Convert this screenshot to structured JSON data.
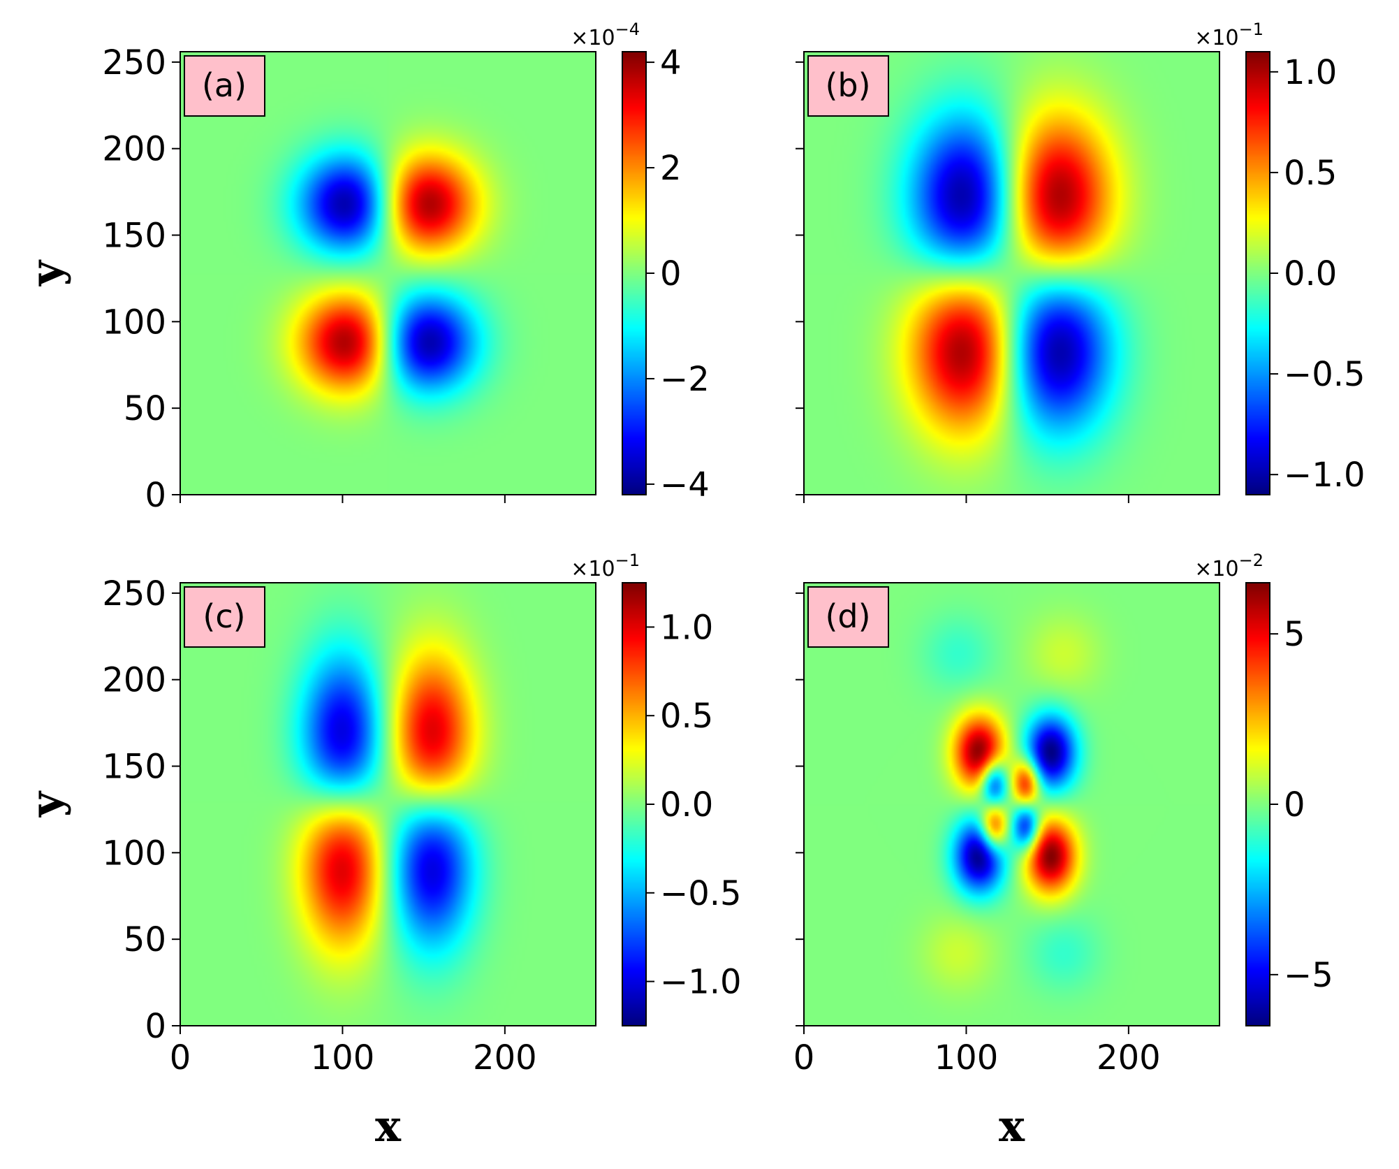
{
  "chart_data": [
    {
      "type": "heatmap",
      "panel_label": "(a)",
      "colormap": "jet",
      "x_ticks": [
        0,
        100,
        200
      ],
      "y_ticks": [
        0,
        50,
        100,
        150,
        200,
        250
      ],
      "xlim": [
        0,
        256
      ],
      "ylim": [
        0,
        256
      ],
      "ylabel": "y",
      "xlabel": "",
      "colorbar": {
        "range": [
          -4.2,
          4.2
        ],
        "ticks": [
          -4,
          -2,
          0,
          2,
          4
        ],
        "tick_labels": [
          "−4",
          "−2",
          "0",
          "2",
          "4"
        ],
        "exponent": "×10",
        "exponent_power": "−4"
      },
      "blobs": [
        {
          "x": 105,
          "y": 168,
          "value": -1.0,
          "sx": 22,
          "sy": 20
        },
        {
          "x": 150,
          "y": 168,
          "value": 1.0,
          "sx": 22,
          "sy": 20
        },
        {
          "x": 105,
          "y": 88,
          "value": 1.0,
          "sx": 22,
          "sy": 20
        },
        {
          "x": 150,
          "y": 88,
          "value": -1.0,
          "sx": 22,
          "sy": 20
        }
      ]
    },
    {
      "type": "heatmap",
      "panel_label": "(b)",
      "colormap": "jet",
      "x_ticks": [
        0,
        100,
        200
      ],
      "y_ticks": [
        0,
        50,
        100,
        150,
        200,
        250
      ],
      "xlim": [
        0,
        256
      ],
      "ylim": [
        0,
        256
      ],
      "ylabel": "",
      "xlabel": "",
      "colorbar": {
        "range": [
          -1.1,
          1.1
        ],
        "ticks": [
          -1.0,
          -0.5,
          0.0,
          0.5,
          1.0
        ],
        "tick_labels": [
          "−1.0",
          "−0.5",
          "0.0",
          "0.5",
          "1.0"
        ],
        "exponent": "×10",
        "exponent_power": "−1"
      },
      "blobs": [
        {
          "x": 100,
          "y": 170,
          "value": -1.0,
          "sx": 24,
          "sy": 34
        },
        {
          "x": 155,
          "y": 170,
          "value": 1.0,
          "sx": 24,
          "sy": 34
        },
        {
          "x": 100,
          "y": 85,
          "value": 1.0,
          "sx": 24,
          "sy": 34
        },
        {
          "x": 155,
          "y": 85,
          "value": -1.0,
          "sx": 24,
          "sy": 34
        }
      ]
    },
    {
      "type": "heatmap",
      "panel_label": "(c)",
      "colormap": "jet",
      "x_ticks": [
        0,
        100,
        200
      ],
      "y_ticks": [
        0,
        50,
        100,
        150,
        200,
        250
      ],
      "xlim": [
        0,
        256
      ],
      "ylim": [
        0,
        256
      ],
      "ylabel": "y",
      "xlabel": "x",
      "colorbar": {
        "range": [
          -1.25,
          1.25
        ],
        "ticks": [
          -1.0,
          -0.5,
          0.0,
          0.5,
          1.0
        ],
        "tick_labels": [
          "−1.0",
          "−0.5",
          "0.0",
          "0.5",
          "1.0"
        ],
        "exponent": "×10",
        "exponent_power": "−1"
      },
      "blobs": [
        {
          "x": 100,
          "y": 160,
          "value": -1.0,
          "sx": 18,
          "sy": 36
        },
        {
          "x": 155,
          "y": 160,
          "value": 1.0,
          "sx": 18,
          "sy": 36
        },
        {
          "x": 100,
          "y": 100,
          "value": 1.0,
          "sx": 18,
          "sy": 36
        },
        {
          "x": 155,
          "y": 100,
          "value": -1.0,
          "sx": 18,
          "sy": 36
        }
      ]
    },
    {
      "type": "heatmap",
      "panel_label": "(d)",
      "colormap": "jet",
      "x_ticks": [
        0,
        100,
        200
      ],
      "y_ticks": [
        0,
        50,
        100,
        150,
        200,
        250
      ],
      "xlim": [
        0,
        256
      ],
      "ylim": [
        0,
        256
      ],
      "ylabel": "",
      "xlabel": "x",
      "colorbar": {
        "range": [
          -6.5,
          6.5
        ],
        "ticks": [
          -5,
          0,
          5
        ],
        "tick_labels": [
          "−5",
          "0",
          "5"
        ],
        "exponent": "×10",
        "exponent_power": "−2"
      },
      "blobs": [
        {
          "x": 108,
          "y": 158,
          "value": 1.0,
          "sx": 11,
          "sy": 15
        },
        {
          "x": 152,
          "y": 158,
          "value": -1.0,
          "sx": 11,
          "sy": 15
        },
        {
          "x": 108,
          "y": 98,
          "value": -1.0,
          "sx": 11,
          "sy": 15
        },
        {
          "x": 152,
          "y": 98,
          "value": 1.0,
          "sx": 11,
          "sy": 15
        },
        {
          "x": 117,
          "y": 140,
          "value": -0.8,
          "sx": 6,
          "sy": 10
        },
        {
          "x": 137,
          "y": 140,
          "value": 0.8,
          "sx": 6,
          "sy": 10
        },
        {
          "x": 117,
          "y": 115,
          "value": 0.8,
          "sx": 6,
          "sy": 10
        },
        {
          "x": 137,
          "y": 115,
          "value": -0.8,
          "sx": 6,
          "sy": 10
        },
        {
          "x": 95,
          "y": 215,
          "value": -0.15,
          "sx": 16,
          "sy": 16
        },
        {
          "x": 160,
          "y": 215,
          "value": 0.15,
          "sx": 16,
          "sy": 16
        },
        {
          "x": 95,
          "y": 42,
          "value": 0.15,
          "sx": 16,
          "sy": 16
        },
        {
          "x": 160,
          "y": 42,
          "value": -0.15,
          "sx": 16,
          "sy": 16
        }
      ]
    }
  ]
}
